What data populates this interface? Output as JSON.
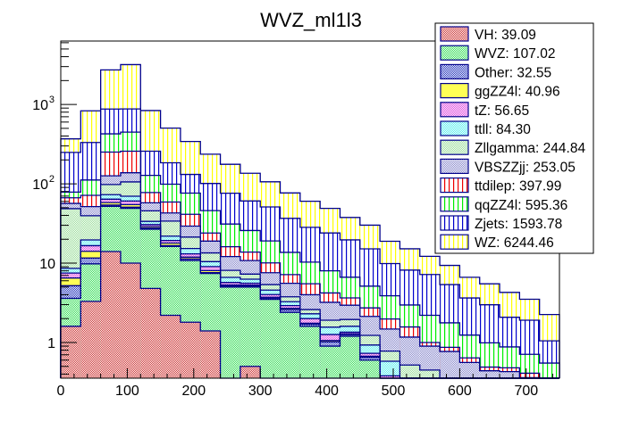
{
  "chart_data": {
    "type": "bar",
    "stacked": true,
    "histogram": true,
    "title": "WVZ_ml1l3",
    "xlabel": "",
    "ylabel": "",
    "xlim": [
      0,
      750
    ],
    "ylim": [
      0.355,
      6300
    ],
    "yscale": "log",
    "bin_width": 30,
    "x": [
      0,
      30,
      60,
      90,
      120,
      150,
      180,
      210,
      240,
      270,
      300,
      330,
      360,
      390,
      420,
      450,
      480,
      510,
      540,
      570,
      600,
      630,
      660,
      690,
      720
    ],
    "x_ticks": [
      "0",
      "100",
      "200",
      "300",
      "400",
      "500",
      "600",
      "700"
    ],
    "x_tick_values": [
      0,
      100,
      200,
      300,
      400,
      500,
      600,
      700
    ],
    "y_ticks": [
      {
        "label": "1",
        "value": 1
      },
      {
        "label": "10",
        "value": 10
      },
      {
        "label": "10",
        "sup": "2",
        "value": 100
      },
      {
        "label": "10",
        "sup": "3",
        "value": 1000
      }
    ],
    "legend_position": "top-right",
    "series": [
      {
        "name": "VH",
        "label": "VH: 39.09",
        "color": "#cc3333",
        "pattern": "checker",
        "values": [
          1.6,
          3.3,
          14,
          10,
          4.8,
          2.2,
          1.8,
          1.4,
          0,
          0.5,
          0,
          0,
          0,
          0,
          0,
          0,
          0,
          0,
          0,
          0,
          0,
          0,
          0,
          0,
          0
        ]
      },
      {
        "name": "WVZ",
        "label": "WVZ: 107.02",
        "color": "#33dd55",
        "pattern": "checker",
        "values": [
          2.0,
          6.5,
          38,
          39,
          22,
          14,
          9,
          6,
          5,
          4.5,
          3.5,
          2.4,
          1.6,
          0.9,
          1.2,
          0.6,
          0.3,
          0.1,
          0.05,
          0,
          0,
          0,
          0,
          0,
          0
        ]
      },
      {
        "name": "Other",
        "label": "Other: 32.55",
        "color": "#2233bb",
        "pattern": "checker",
        "values": [
          1.6,
          1.8,
          2.0,
          1.7,
          0.8,
          0.5,
          0.5,
          0.2,
          0.16,
          0.16,
          0.12,
          0.2,
          0.1,
          0.12,
          0.06,
          0.05,
          0.02,
          0.02,
          0.01,
          0.01,
          0.01,
          0.01,
          0.01,
          0.01,
          0.02
        ]
      },
      {
        "name": "ggZZ4l",
        "label": "ggZZ4l: 40.96",
        "color": "#ffff55",
        "pattern": "solid",
        "values": [
          1.3,
          2.5,
          4,
          4,
          1.3,
          1.2,
          0.6,
          0.45,
          0.15,
          0.12,
          0.1,
          0.1,
          0.05,
          0.04,
          0.03,
          0.02,
          0.02,
          0.01,
          0.01,
          0.01,
          0.01,
          0.01,
          0.01,
          0.01,
          0.01
        ]
      },
      {
        "name": "tZ",
        "label": "tZ: 56.65",
        "color": "#dd44dd",
        "pattern": "checker",
        "values": [
          1.0,
          2.5,
          6,
          6,
          1.7,
          1.4,
          1.2,
          1.0,
          0.4,
          0.3,
          0.3,
          0.22,
          0.25,
          0.2,
          0.06,
          0.06,
          0.04,
          0.03,
          0.03,
          0.03,
          0.02,
          0.02,
          0.02,
          0.02,
          0.02
        ]
      },
      {
        "name": "ttll",
        "label": "ttll: 84.30",
        "color": "#55eeee",
        "pattern": "checker",
        "values": [
          1.1,
          3.0,
          9,
          9,
          3.0,
          2.6,
          2.2,
          1.4,
          0.9,
          0.7,
          0.55,
          0.35,
          0.3,
          0.3,
          0.25,
          0.2,
          0.2,
          0.18,
          0.15,
          0.07,
          0.05,
          0.05,
          0.04,
          0.04,
          0.03
        ]
      },
      {
        "name": "Zllgamma",
        "label": "Zllgamma: 244.84",
        "color": "#99dd99",
        "pattern": "checker",
        "values": [
          40,
          20,
          25,
          36,
          12,
          12,
          6,
          3,
          1.5,
          1.0,
          0.8,
          0.5,
          0.3,
          0.35,
          0.35,
          0.3,
          0.2,
          0.18,
          0.2,
          0.15,
          0.12,
          0.1,
          0.1,
          0.08,
          0.07
        ]
      },
      {
        "name": "VBSZZjj",
        "label": "VBSZZjj: 253.05",
        "color": "#8888cc",
        "pattern": "checker",
        "values": [
          8,
          12,
          28,
          32,
          12,
          9,
          8,
          5.5,
          4,
          3.5,
          2.2,
          1.8,
          1.4,
          1.3,
          1.0,
          0.9,
          0.7,
          0.65,
          0.45,
          0.5,
          0.35,
          0.25,
          0.25,
          0.2,
          0.15
        ]
      },
      {
        "name": "ttdilep",
        "label": "ttdilep: 397.99",
        "color": "#ee0000",
        "pattern": "vlines",
        "values": [
          10,
          20,
          125,
          120,
          20,
          16,
          12,
          5,
          4,
          3,
          2.5,
          1.6,
          1.5,
          1.0,
          0.7,
          0.6,
          0.5,
          0.4,
          0.1,
          0.1,
          0.08,
          0.05,
          0.05,
          0.05,
          0.05
        ]
      },
      {
        "name": "qqZZ4l",
        "label": "qqZZ4l: 595.36",
        "color": "#00ee00",
        "pattern": "vlines",
        "values": [
          12,
          40,
          175,
          190,
          50,
          40,
          35,
          22,
          15,
          12,
          9,
          6.5,
          4.8,
          3.8,
          3.0,
          2.4,
          1.9,
          1.4,
          1.2,
          0.9,
          0.6,
          0.5,
          0.4,
          0.3,
          0.2
        ]
      },
      {
        "name": "Zjets",
        "label": "Zjets: 1593.78",
        "color": "#0000cc",
        "pattern": "vlines",
        "values": [
          170,
          220,
          450,
          430,
          130,
          85,
          55,
          55,
          45,
          35,
          32,
          23,
          18,
          16,
          13,
          10,
          6,
          5.2,
          5.0,
          3.6,
          2.4,
          2.0,
          1.2,
          1.2,
          0.5
        ]
      },
      {
        "name": "WZ",
        "label": "WZ: 6244.46",
        "color": "#ffff00",
        "pattern": "vlines",
        "values": [
          120,
          500,
          1850,
          2300,
          580,
          320,
          210,
          135,
          100,
          75,
          55,
          40,
          32,
          25,
          18,
          15,
          9,
          7,
          5,
          4,
          3,
          2.5,
          2.2,
          1.6,
          1.2
        ]
      }
    ]
  }
}
